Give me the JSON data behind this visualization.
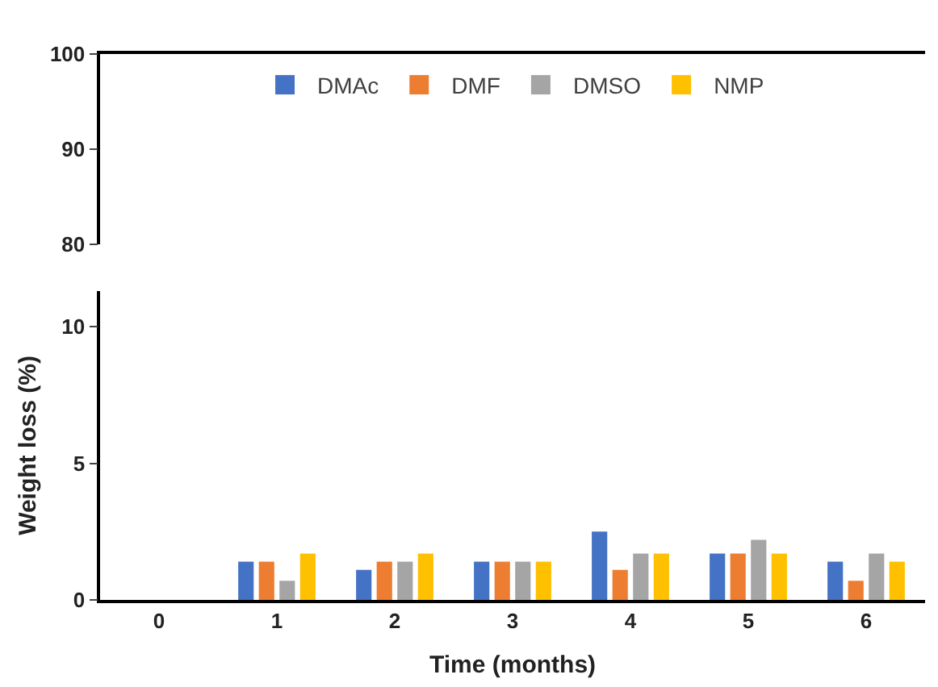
{
  "chart_data": [
    {
      "type": "bar",
      "categories": [
        "0",
        "1",
        "2",
        "3",
        "4",
        "5",
        "6"
      ],
      "ylim": [
        80,
        100
      ],
      "yticks": [
        80,
        90,
        100
      ],
      "tick_labels": "y",
      "legend": "top",
      "series": [
        {
          "name": "DMAc",
          "color": "#4472c4",
          "values": [
            null,
            null,
            null,
            null,
            null,
            null,
            null
          ]
        },
        {
          "name": "DMF",
          "color": "#ed7d31",
          "values": [
            null,
            null,
            null,
            null,
            null,
            null,
            null
          ]
        },
        {
          "name": "DMSO",
          "color": "#a5a5a5",
          "values": [
            null,
            null,
            null,
            null,
            null,
            null,
            null
          ]
        },
        {
          "name": "NMP",
          "color": "#ffc000",
          "values": [
            null,
            null,
            null,
            null,
            null,
            null,
            null
          ]
        }
      ]
    },
    {
      "type": "bar",
      "categories": [
        "0",
        "1",
        "2",
        "3",
        "4",
        "5",
        "6"
      ],
      "xlabel": "Time (months)",
      "ylabel": "Weight loss (%)",
      "ylim": [
        0,
        11.3
      ],
      "yticks": [
        0,
        5,
        10
      ],
      "series": [
        {
          "color": "#4472c4",
          "values": [
            0,
            1.4,
            1.1,
            1.4,
            2.5,
            1.7,
            1.4
          ]
        },
        {
          "color": "#ed7d31",
          "values": [
            0,
            1.4,
            1.4,
            1.4,
            1.1,
            1.7,
            0.7
          ]
        },
        {
          "color": "#a5a5a5",
          "values": [
            0,
            0.7,
            1.4,
            1.4,
            1.7,
            2.2,
            1.7
          ]
        },
        {
          "color": "#ffc000",
          "values": [
            0,
            1.7,
            1.7,
            1.4,
            1.7,
            1.7,
            1.4
          ]
        }
      ]
    }
  ]
}
